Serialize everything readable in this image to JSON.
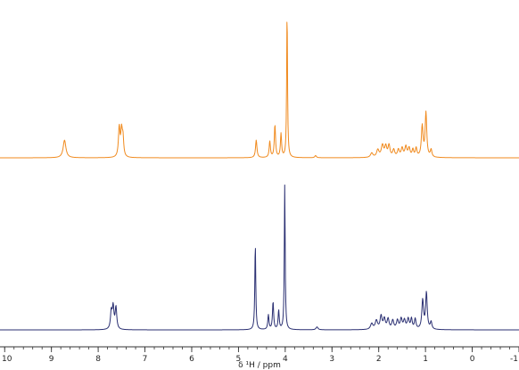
{
  "chart_data": {
    "type": "line",
    "title": "",
    "xlabel": "δ ¹H / ppm",
    "ylabel": "",
    "xlim": [
      10.1,
      -1.0
    ],
    "x_reversed": true,
    "ticks": [
      "10",
      "9",
      "8",
      "7",
      "6",
      "5",
      "4",
      "3",
      "2",
      "1",
      "0",
      "-1"
    ],
    "tick_values": [
      10,
      9,
      8,
      7,
      6,
      5,
      4,
      3,
      2,
      1,
      0,
      -1
    ],
    "grid": false,
    "legend": "none",
    "series": [
      {
        "color": "#f08a1e",
        "stack": "top",
        "peaks": [
          {
            "x": 8.72,
            "h": 0.12,
            "w": 0.035
          },
          {
            "x": 7.55,
            "h": 0.2,
            "w": 0.02
          },
          {
            "x": 7.5,
            "h": 0.17,
            "w": 0.02
          },
          {
            "x": 7.47,
            "h": 0.12,
            "w": 0.018
          },
          {
            "x": 4.62,
            "h": 0.12,
            "w": 0.018
          },
          {
            "x": 4.33,
            "h": 0.11,
            "w": 0.016
          },
          {
            "x": 4.22,
            "h": 0.22,
            "w": 0.016
          },
          {
            "x": 4.09,
            "h": 0.16,
            "w": 0.015
          },
          {
            "x": 3.96,
            "h": 1.0,
            "w": 0.011
          },
          {
            "x": 3.35,
            "h": 0.015,
            "w": 0.02
          },
          {
            "x": 2.15,
            "h": 0.03,
            "w": 0.03
          },
          {
            "x": 2.02,
            "h": 0.05,
            "w": 0.03
          },
          {
            "x": 1.92,
            "h": 0.08,
            "w": 0.03
          },
          {
            "x": 1.85,
            "h": 0.07,
            "w": 0.025
          },
          {
            "x": 1.78,
            "h": 0.08,
            "w": 0.025
          },
          {
            "x": 1.68,
            "h": 0.05,
            "w": 0.025
          },
          {
            "x": 1.58,
            "h": 0.05,
            "w": 0.025
          },
          {
            "x": 1.5,
            "h": 0.06,
            "w": 0.025
          },
          {
            "x": 1.42,
            "h": 0.07,
            "w": 0.025
          },
          {
            "x": 1.35,
            "h": 0.06,
            "w": 0.025
          },
          {
            "x": 1.27,
            "h": 0.05,
            "w": 0.02
          },
          {
            "x": 1.2,
            "h": 0.06,
            "w": 0.02
          },
          {
            "x": 1.07,
            "h": 0.21,
            "w": 0.022
          },
          {
            "x": 0.99,
            "h": 0.3,
            "w": 0.02
          },
          {
            "x": 0.88,
            "h": 0.05,
            "w": 0.02
          }
        ]
      },
      {
        "color": "#2a2f72",
        "stack": "bottom",
        "peaks": [
          {
            "x": 7.72,
            "h": 0.12,
            "w": 0.02
          },
          {
            "x": 7.68,
            "h": 0.15,
            "w": 0.02
          },
          {
            "x": 7.62,
            "h": 0.15,
            "w": 0.02
          },
          {
            "x": 4.64,
            "h": 0.59,
            "w": 0.012
          },
          {
            "x": 4.36,
            "h": 0.1,
            "w": 0.015
          },
          {
            "x": 4.26,
            "h": 0.19,
            "w": 0.015
          },
          {
            "x": 4.14,
            "h": 0.13,
            "w": 0.014
          },
          {
            "x": 4.01,
            "h": 1.0,
            "w": 0.011
          },
          {
            "x": 3.32,
            "h": 0.02,
            "w": 0.025
          },
          {
            "x": 2.15,
            "h": 0.04,
            "w": 0.03
          },
          {
            "x": 2.05,
            "h": 0.06,
            "w": 0.03
          },
          {
            "x": 1.95,
            "h": 0.09,
            "w": 0.025
          },
          {
            "x": 1.88,
            "h": 0.07,
            "w": 0.025
          },
          {
            "x": 1.8,
            "h": 0.07,
            "w": 0.025
          },
          {
            "x": 1.7,
            "h": 0.06,
            "w": 0.025
          },
          {
            "x": 1.6,
            "h": 0.06,
            "w": 0.025
          },
          {
            "x": 1.52,
            "h": 0.07,
            "w": 0.025
          },
          {
            "x": 1.45,
            "h": 0.06,
            "w": 0.025
          },
          {
            "x": 1.37,
            "h": 0.07,
            "w": 0.025
          },
          {
            "x": 1.3,
            "h": 0.07,
            "w": 0.02
          },
          {
            "x": 1.22,
            "h": 0.07,
            "w": 0.02
          },
          {
            "x": 1.06,
            "h": 0.2,
            "w": 0.022
          },
          {
            "x": 0.98,
            "h": 0.25,
            "w": 0.02
          },
          {
            "x": 0.88,
            "h": 0.05,
            "w": 0.02
          }
        ]
      }
    ]
  }
}
